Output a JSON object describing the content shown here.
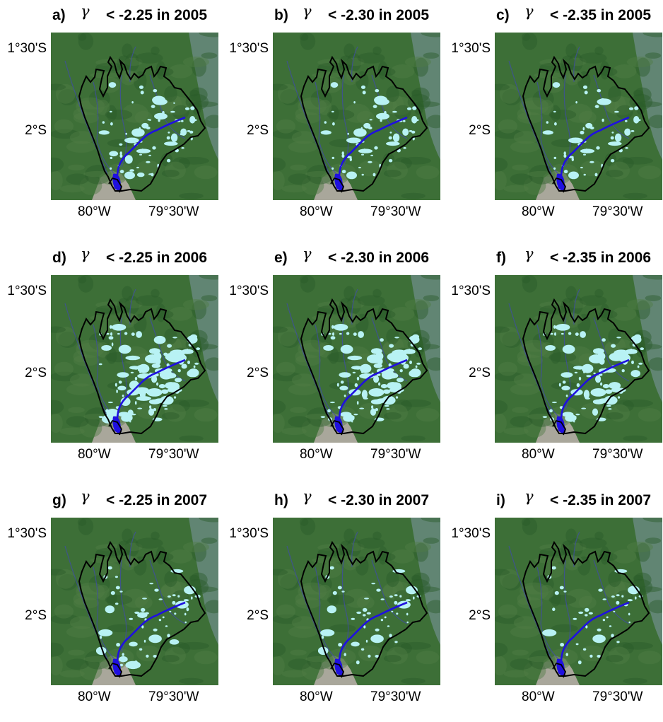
{
  "colors": {
    "forest_dark": "#2b5a2b",
    "forest": "#3d6f37",
    "city": "#a9a79b",
    "haze": "#7f97a6",
    "river": "#1f10e0",
    "river_minor": "#3f4ea0",
    "flooded": "#b8f2f4",
    "boundary": "#000000"
  },
  "axes": {
    "lat_ticks": [
      "1°30'S",
      "2°S"
    ],
    "lon_ticks": [
      "80°W",
      "79°30'W"
    ]
  },
  "panels": [
    {
      "letter": "a)",
      "symbol": "γ",
      "condition": "< -2.25 in 2005",
      "threshold": -2.25,
      "year": 2005,
      "flood_extent": 0.5
    },
    {
      "letter": "b)",
      "symbol": "γ",
      "condition": "< -2.30 in 2005",
      "threshold": -2.3,
      "year": 2005,
      "flood_extent": 0.42
    },
    {
      "letter": "c)",
      "symbol": "γ",
      "condition": "< -2.35 in 2005",
      "threshold": -2.35,
      "year": 2005,
      "flood_extent": 0.32
    },
    {
      "letter": "d)",
      "symbol": "γ",
      "condition": "< -2.25 in 2006",
      "threshold": -2.25,
      "year": 2006,
      "flood_extent": 1.0
    },
    {
      "letter": "e)",
      "symbol": "γ",
      "condition": "< -2.30 in 2006",
      "threshold": -2.3,
      "year": 2006,
      "flood_extent": 0.85
    },
    {
      "letter": "f)",
      "symbol": "γ",
      "condition": "< -2.35 in 2006",
      "threshold": -2.35,
      "year": 2006,
      "flood_extent": 0.72
    },
    {
      "letter": "g)",
      "symbol": "γ",
      "condition": "< -2.25 in 2007",
      "threshold": -2.25,
      "year": 2007,
      "flood_extent": 0.36
    },
    {
      "letter": "h)",
      "symbol": "γ",
      "condition": "< -2.30 in 2007",
      "threshold": -2.3,
      "year": 2007,
      "flood_extent": 0.28
    },
    {
      "letter": "i)",
      "symbol": "γ",
      "condition": "< -2.35 in 2007",
      "threshold": -2.35,
      "year": 2007,
      "flood_extent": 0.2
    }
  ]
}
